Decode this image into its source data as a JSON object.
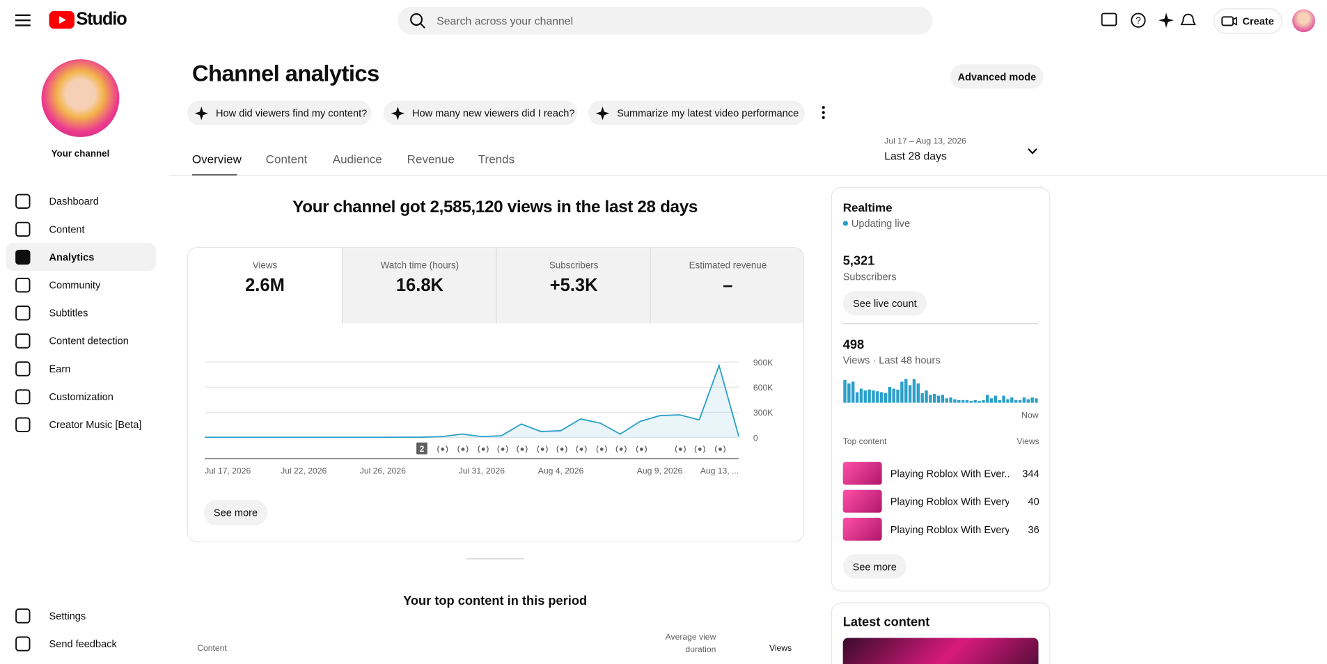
{
  "header": {
    "logo": "Studio",
    "search_placeholder": "Search across your channel",
    "create": "Create"
  },
  "sidebar": {
    "channel_label": "Your channel",
    "nav": [
      "Dashboard",
      "Content",
      "Analytics",
      "Community",
      "Subtitles",
      "Content detection",
      "Earn",
      "Customization",
      "Creator Music [Beta]"
    ],
    "footer": [
      "Settings",
      "Send feedback"
    ]
  },
  "page": {
    "title": "Channel analytics",
    "advanced": "Advanced mode",
    "suggestions": [
      "How did viewers find my content?",
      "How many new viewers did I reach?",
      "Summarize my latest video performance"
    ],
    "tabs": [
      "Overview",
      "Content",
      "Audience",
      "Revenue",
      "Trends"
    ],
    "date_range": "Jul 17 – Aug 13, 2026",
    "date_label": "Last 28 days",
    "headline": "Your channel got 2,585,120 views in the last 28 days"
  },
  "metrics": [
    {
      "label": "Views",
      "value": "2.6M"
    },
    {
      "label": "Watch time (hours)",
      "value": "16.8K"
    },
    {
      "label": "Subscribers",
      "value": "+5.3K"
    },
    {
      "label": "Estimated revenue",
      "value": "–"
    }
  ],
  "chart_data": [
    {
      "type": "line",
      "categories": [
        "Jul 17, 2026",
        null,
        null,
        null,
        null,
        "Jul 22, 2026",
        null,
        null,
        null,
        "Jul 26, 2026",
        null,
        null,
        null,
        null,
        "Jul 31, 2026",
        null,
        null,
        null,
        "Aug 4, 2026",
        null,
        null,
        null,
        null,
        "Aug 9, 2026",
        null,
        null,
        null,
        "Aug 13, ..."
      ],
      "series": [
        {
          "name": "Views",
          "color": "#2b9fc9",
          "values": [
            1000,
            1000,
            1000,
            1000,
            1000,
            1000,
            1000,
            1000,
            1000,
            1000,
            2000,
            3000,
            10000,
            40000,
            10000,
            20000,
            160000,
            70000,
            80000,
            220000,
            170000,
            40000,
            190000,
            260000,
            270000,
            210000,
            860000,
            10000
          ]
        }
      ],
      "ylim": [
        0,
        900000
      ],
      "yticks": [
        0,
        {
          "value": 300000,
          "label": "300K"
        },
        {
          "value": 600000,
          "label": "600K"
        },
        {
          "value": 900000,
          "label": "900K"
        }
      ],
      "grid": true,
      "annotation": "2"
    },
    {
      "type": "bar",
      "color": "#2b9fc9",
      "values": [
        26,
        22,
        24,
        12,
        16,
        14,
        15,
        14,
        13,
        12,
        11,
        18,
        16,
        15,
        24,
        27,
        20,
        27,
        22,
        11,
        14,
        9,
        10,
        8,
        9,
        5,
        6,
        4,
        3,
        3,
        3,
        2,
        3,
        2,
        3,
        9,
        5,
        8,
        3,
        8,
        4,
        6,
        3,
        3,
        6,
        4,
        6,
        5
      ],
      "x_end_label": "Now"
    }
  ],
  "see_more": "See more",
  "top_content": {
    "title": "Your top content in this period",
    "col_content": "Content",
    "col_avd": "Average view duration",
    "col_views": "Views"
  },
  "realtime": {
    "title": "Realtime",
    "status": "Updating live",
    "subscribers": "5,321",
    "subscribers_label": "Subscribers",
    "live_count": "See live count",
    "views": "498",
    "views_label": "Views · Last 48 hours",
    "top_content_label": "Top content",
    "views_col": "Views",
    "items": [
      {
        "title": "Playing Roblox With Ever...",
        "views": 344
      },
      {
        "title": "Playing Roblox With Every...",
        "views": 40
      },
      {
        "title": "Playing Roblox With Every...",
        "views": 36
      }
    ],
    "see_more": "See more"
  },
  "latest": {
    "title": "Latest content"
  }
}
